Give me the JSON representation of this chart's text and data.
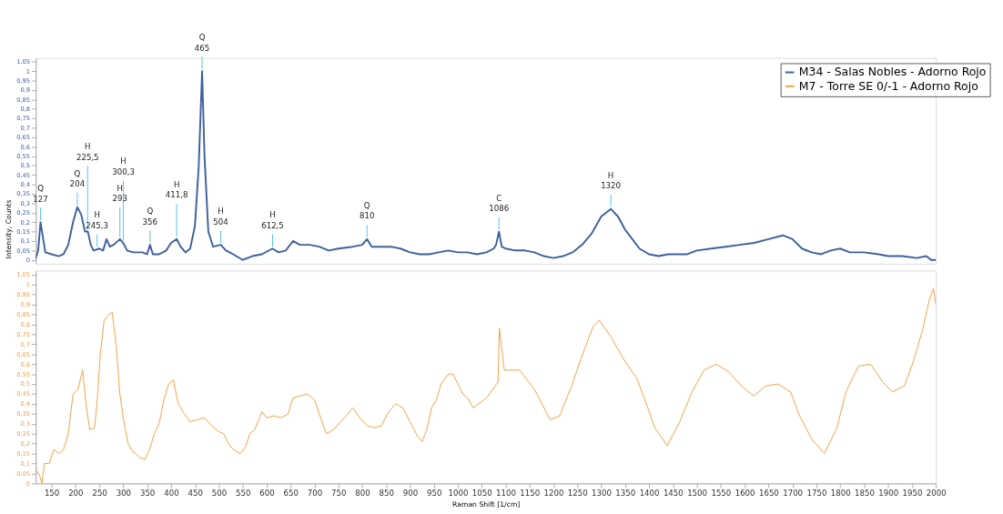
{
  "chart_data": [
    {
      "type": "line",
      "ylabel": "Intensity, Counts",
      "xlim": [
        117,
        2000
      ],
      "ylim": [
        -0.02,
        1.07
      ],
      "tick_labels": "y",
      "grid": false,
      "legend": "top right",
      "marker": "none",
      "line_style": "solid",
      "yticks": [
        0,
        {
          "value": 0.05,
          "label": "0,05"
        },
        {
          "value": 0.1,
          "label": "0,1"
        },
        {
          "value": 0.15,
          "label": "0,15"
        },
        {
          "value": 0.2,
          "label": "0,2"
        },
        {
          "value": 0.25,
          "label": "0,25"
        },
        {
          "value": 0.3,
          "label": "0,3"
        },
        {
          "value": 0.35,
          "label": "0,35"
        },
        {
          "value": 0.4,
          "label": "0,4"
        },
        {
          "value": 0.45,
          "label": "0,45"
        },
        {
          "value": 0.5,
          "label": "0,5"
        },
        {
          "value": 0.55,
          "label": "0,55"
        },
        {
          "value": 0.6,
          "label": "0,6"
        },
        {
          "value": 0.65,
          "label": "0,65"
        },
        {
          "value": 0.7,
          "label": "0,7"
        },
        {
          "value": 0.75,
          "label": "0,75"
        },
        {
          "value": 0.8,
          "label": "0,8"
        },
        {
          "value": 0.85,
          "label": "0,85"
        },
        {
          "value": 0.9,
          "label": "0,9"
        },
        {
          "value": 0.95,
          "label": "0,95"
        },
        1,
        {
          "value": 1.05,
          "label": "1,05"
        }
      ],
      "series": [
        {
          "name": "M34 - Salas Nobles - Adorno Rojo",
          "color": "#3d5f9e",
          "x": [
            117,
            122,
            127,
            132,
            137,
            150,
            165,
            175,
            185,
            195,
            204,
            212,
            220,
            226,
            232,
            238,
            250,
            258,
            265,
            272,
            280,
            293,
            300,
            308,
            320,
            340,
            350,
            356,
            362,
            375,
            390,
            400,
            412,
            420,
            430,
            440,
            450,
            458,
            465,
            470,
            478,
            488,
            504,
            515,
            530,
            550,
            570,
            590,
            612,
            625,
            640,
            655,
            670,
            690,
            710,
            730,
            750,
            780,
            800,
            810,
            820,
            840,
            860,
            880,
            900,
            920,
            940,
            960,
            980,
            1000,
            1020,
            1040,
            1060,
            1075,
            1080,
            1086,
            1092,
            1100,
            1120,
            1140,
            1160,
            1180,
            1200,
            1220,
            1240,
            1260,
            1280,
            1300,
            1320,
            1335,
            1350,
            1365,
            1380,
            1400,
            1420,
            1440,
            1460,
            1480,
            1500,
            1530,
            1560,
            1590,
            1620,
            1650,
            1680,
            1700,
            1720,
            1740,
            1760,
            1780,
            1800,
            1820,
            1850,
            1880,
            1900,
            1930,
            1960,
            1980,
            1990,
            2000
          ],
          "values": [
            0.01,
            0.05,
            0.2,
            0.12,
            0.04,
            0.03,
            0.02,
            0.03,
            0.08,
            0.2,
            0.28,
            0.24,
            0.15,
            0.15,
            0.08,
            0.05,
            0.06,
            0.05,
            0.11,
            0.07,
            0.08,
            0.11,
            0.09,
            0.05,
            0.04,
            0.04,
            0.03,
            0.08,
            0.03,
            0.03,
            0.05,
            0.09,
            0.11,
            0.07,
            0.04,
            0.06,
            0.18,
            0.5,
            1.0,
            0.55,
            0.15,
            0.07,
            0.08,
            0.05,
            0.03,
            0.0,
            0.02,
            0.03,
            0.06,
            0.04,
            0.05,
            0.1,
            0.08,
            0.08,
            0.07,
            0.05,
            0.06,
            0.07,
            0.08,
            0.11,
            0.07,
            0.07,
            0.07,
            0.06,
            0.04,
            0.03,
            0.03,
            0.04,
            0.05,
            0.04,
            0.04,
            0.03,
            0.04,
            0.06,
            0.08,
            0.15,
            0.07,
            0.06,
            0.05,
            0.05,
            0.04,
            0.02,
            0.01,
            0.02,
            0.04,
            0.08,
            0.14,
            0.23,
            0.27,
            0.23,
            0.16,
            0.11,
            0.06,
            0.03,
            0.02,
            0.03,
            0.03,
            0.03,
            0.05,
            0.06,
            0.07,
            0.08,
            0.09,
            0.11,
            0.13,
            0.11,
            0.06,
            0.04,
            0.03,
            0.05,
            0.06,
            0.04,
            0.04,
            0.03,
            0.02,
            0.02,
            0.01,
            0.02,
            0.0,
            0.0
          ]
        }
      ],
      "annotations": [
        {
          "text": "Q 127",
          "x": 127,
          "y": 0.2
        },
        {
          "text": "Q 204",
          "x": 204,
          "y": 0.28
        },
        {
          "text": "H 225,5",
          "x": 225.5,
          "y": 0.15
        },
        {
          "text": "H 245,3",
          "x": 245.3,
          "y": 0.06
        },
        {
          "text": "H 293",
          "x": 293,
          "y": 0.11
        },
        {
          "text": "H 300,3",
          "x": 300.3,
          "y": 0.09
        },
        {
          "text": "Q 356",
          "x": 356,
          "y": 0.08
        },
        {
          "text": "H 411,8",
          "x": 411.8,
          "y": 0.11
        },
        {
          "text": "Q 465",
          "x": 465,
          "y": 1.0
        },
        {
          "text": "H 504",
          "x": 504,
          "y": 0.08
        },
        {
          "text": "H 612,5",
          "x": 612.5,
          "y": 0.06
        },
        {
          "text": "Q 810",
          "x": 810,
          "y": 0.11
        },
        {
          "text": "C 1086",
          "x": 1086,
          "y": 0.15
        },
        {
          "text": "H 1320",
          "x": 1320,
          "y": 0.27
        }
      ]
    },
    {
      "type": "line",
      "xlabel": "Raman Shift [1/cm]",
      "xlim": [
        117,
        2000
      ],
      "ylim": [
        0,
        1.07
      ],
      "grid": false,
      "marker": "none",
      "line_style": "solid",
      "xticks": [
        150,
        200,
        250,
        300,
        350,
        400,
        450,
        500,
        550,
        600,
        650,
        700,
        750,
        800,
        850,
        900,
        950,
        1000,
        1050,
        1100,
        1150,
        1200,
        1250,
        1300,
        1350,
        1400,
        1450,
        1500,
        1550,
        1600,
        1650,
        1700,
        1750,
        1800,
        1850,
        1900,
        1950,
        2000
      ],
      "yticks": [
        0,
        {
          "value": 0.05,
          "label": "0,05"
        },
        {
          "value": 0.1,
          "label": "0,1"
        },
        {
          "value": 0.15,
          "label": "0,15"
        },
        {
          "value": 0.2,
          "label": "0,2"
        },
        {
          "value": 0.25,
          "label": "0,25"
        },
        {
          "value": 0.3,
          "label": "0,3"
        },
        {
          "value": 0.35,
          "label": "0,35"
        },
        {
          "value": 0.4,
          "label": "0,4"
        },
        {
          "value": 0.45,
          "label": "0,45"
        },
        {
          "value": 0.5,
          "label": "0,5"
        },
        {
          "value": 0.55,
          "label": "0,55"
        },
        {
          "value": 0.6,
          "label": "0,6"
        },
        {
          "value": 0.65,
          "label": "0,65"
        },
        {
          "value": 0.7,
          "label": "0,7"
        },
        {
          "value": 0.75,
          "label": "0,75"
        },
        {
          "value": 0.8,
          "label": "0,8"
        },
        {
          "value": 0.85,
          "label": "0,85"
        },
        {
          "value": 0.9,
          "label": "0,9"
        },
        {
          "value": 0.95,
          "label": "0,95"
        },
        1,
        {
          "value": 1.05,
          "label": "1,05"
        }
      ],
      "series": [
        {
          "name": "M7  - Torre SE 0/-1 - Adorno Rojo",
          "color": "#f0a040",
          "x": [
            117,
            125,
            130,
            135,
            145,
            155,
            165,
            175,
            185,
            195,
            205,
            215,
            222,
            230,
            240,
            245,
            252,
            260,
            270,
            277,
            285,
            293,
            300,
            310,
            320,
            335,
            345,
            355,
            365,
            375,
            385,
            395,
            405,
            415,
            425,
            440,
            455,
            470,
            485,
            500,
            510,
            520,
            530,
            545,
            555,
            565,
            575,
            590,
            600,
            615,
            630,
            645,
            655,
            670,
            685,
            700,
            710,
            725,
            740,
            755,
            770,
            780,
            795,
            810,
            825,
            840,
            855,
            870,
            885,
            900,
            915,
            925,
            935,
            945,
            955,
            965,
            980,
            990,
            1000,
            1010,
            1020,
            1032,
            1060,
            1084,
            1087,
            1097,
            1129,
            1161,
            1193,
            1213,
            1238,
            1258,
            1283,
            1296,
            1322,
            1348,
            1374,
            1393,
            1412,
            1438,
            1464,
            1490,
            1515,
            1541,
            1567,
            1593,
            1619,
            1644,
            1670,
            1696,
            1715,
            1741,
            1767,
            1793,
            1812,
            1838,
            1863,
            1889,
            1909,
            1934,
            1954,
            1973,
            1986,
            1995,
            2000
          ],
          "values": [
            0.07,
            0.04,
            0.0,
            0.1,
            0.1,
            0.17,
            0.15,
            0.17,
            0.25,
            0.45,
            0.47,
            0.57,
            0.4,
            0.27,
            0.28,
            0.4,
            0.65,
            0.82,
            0.85,
            0.86,
            0.7,
            0.45,
            0.33,
            0.2,
            0.16,
            0.13,
            0.12,
            0.17,
            0.25,
            0.3,
            0.42,
            0.5,
            0.52,
            0.4,
            0.36,
            0.31,
            0.32,
            0.33,
            0.29,
            0.26,
            0.25,
            0.2,
            0.17,
            0.15,
            0.18,
            0.25,
            0.27,
            0.36,
            0.33,
            0.34,
            0.33,
            0.35,
            0.43,
            0.44,
            0.45,
            0.42,
            0.35,
            0.25,
            0.27,
            0.31,
            0.35,
            0.38,
            0.33,
            0.29,
            0.28,
            0.29,
            0.36,
            0.4,
            0.38,
            0.31,
            0.24,
            0.21,
            0.27,
            0.38,
            0.42,
            0.5,
            0.55,
            0.55,
            0.5,
            0.45,
            0.43,
            0.38,
            0.43,
            0.51,
            0.78,
            0.57,
            0.57,
            0.47,
            0.32,
            0.34,
            0.49,
            0.63,
            0.79,
            0.82,
            0.73,
            0.62,
            0.53,
            0.41,
            0.28,
            0.19,
            0.31,
            0.46,
            0.57,
            0.6,
            0.56,
            0.49,
            0.44,
            0.49,
            0.5,
            0.46,
            0.34,
            0.22,
            0.15,
            0.28,
            0.46,
            0.59,
            0.6,
            0.51,
            0.46,
            0.49,
            0.62,
            0.78,
            0.92,
            0.98,
            0.9
          ]
        }
      ]
    }
  ]
}
